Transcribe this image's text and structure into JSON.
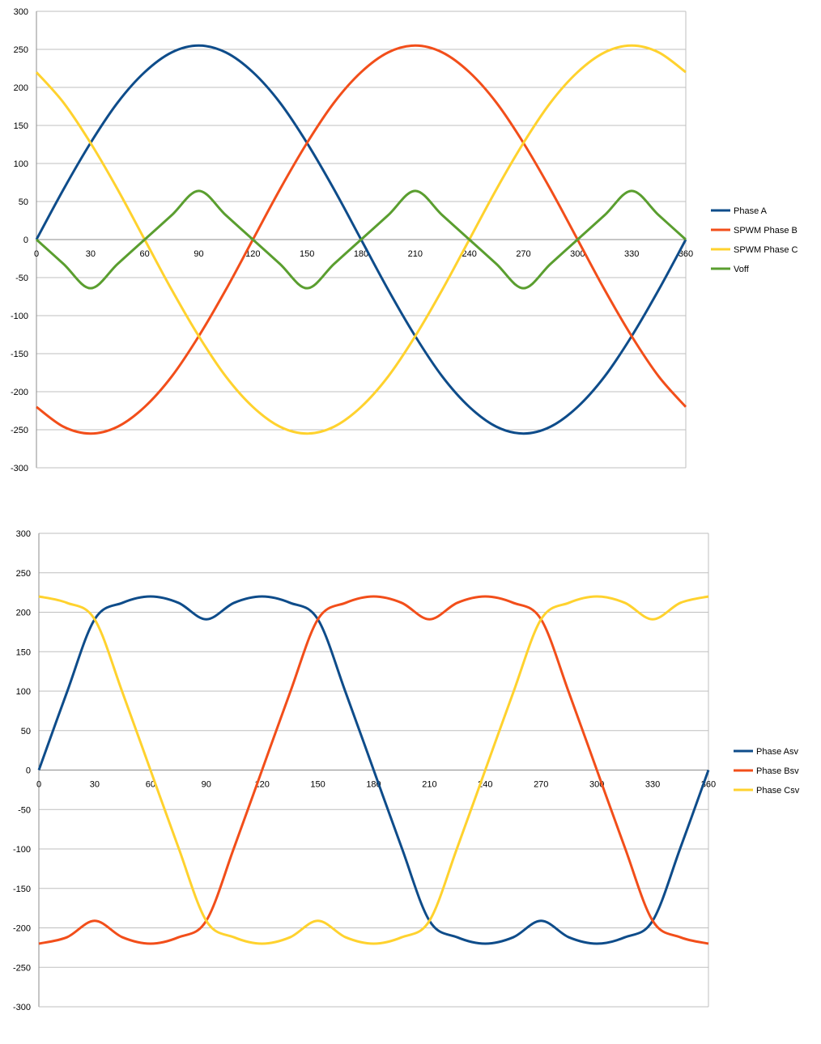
{
  "chart_data": [
    {
      "type": "line",
      "title": "",
      "xlabel": "",
      "ylabel": "",
      "xlim": [
        0,
        360
      ],
      "ylim": [
        -300,
        300
      ],
      "x_ticks": [
        0,
        30,
        60,
        90,
        120,
        150,
        180,
        210,
        240,
        270,
        300,
        330,
        360
      ],
      "y_ticks": [
        300,
        250,
        200,
        150,
        100,
        50,
        0,
        -50,
        -100,
        -150,
        -200,
        -250,
        -300
      ],
      "grid": "horizontal",
      "legend_position": "right",
      "x": [
        0,
        15,
        30,
        45,
        60,
        75,
        90,
        105,
        120,
        135,
        150,
        165,
        180,
        195,
        210,
        225,
        240,
        255,
        270,
        285,
        300,
        315,
        330,
        345,
        360
      ],
      "series": [
        {
          "name": "Phase A",
          "color": "#0E4C8A",
          "values": [
            0,
            66,
            127,
            180,
            220,
            246,
            255,
            246,
            220,
            180,
            127,
            66,
            0,
            -66,
            -127,
            -180,
            -220,
            -246,
            -255,
            -246,
            -220,
            -180,
            -127,
            -66,
            0
          ]
        },
        {
          "name": "SPWM Phase B",
          "color": "#F24E1A",
          "values": [
            -220,
            -246,
            -255,
            -246,
            -220,
            -180,
            -127,
            -66,
            0,
            66,
            127,
            180,
            220,
            246,
            255,
            246,
            220,
            180,
            127,
            66,
            0,
            -66,
            -127,
            -180,
            -220
          ]
        },
        {
          "name": "SPWM Phase C",
          "color": "#FFD22E",
          "values": [
            220,
            180,
            127,
            66,
            0,
            -66,
            -127,
            -180,
            -220,
            -246,
            -255,
            -246,
            -220,
            -180,
            -127,
            -66,
            0,
            66,
            127,
            180,
            220,
            246,
            255,
            246,
            220
          ]
        },
        {
          "name": "Voff",
          "color": "#5A9E2F",
          "values": [
            0,
            -32,
            -64,
            -32,
            0,
            32,
            64,
            32,
            0,
            -32,
            -64,
            -32,
            0,
            32,
            64,
            32,
            0,
            -32,
            -64,
            -32,
            0,
            32,
            64,
            32,
            0
          ]
        }
      ]
    },
    {
      "type": "line",
      "title": "",
      "xlabel": "",
      "ylabel": "",
      "xlim": [
        0,
        360
      ],
      "ylim": [
        -300,
        300
      ],
      "x_ticks": [
        0,
        30,
        60,
        90,
        120,
        150,
        180,
        210,
        240,
        270,
        300,
        330,
        360
      ],
      "y_ticks": [
        300,
        250,
        200,
        150,
        100,
        50,
        0,
        -50,
        -100,
        -150,
        -200,
        -250,
        -300
      ],
      "grid": "horizontal",
      "legend_position": "right",
      "x": [
        0,
        15,
        30,
        45,
        60,
        75,
        90,
        105,
        120,
        135,
        150,
        165,
        180,
        195,
        210,
        225,
        240,
        255,
        270,
        285,
        300,
        315,
        330,
        345,
        360
      ],
      "series": [
        {
          "name": "Phase Asv",
          "color": "#0E4C8A",
          "values": [
            0,
            98,
            191,
            212,
            220,
            212,
            191,
            212,
            220,
            212,
            191,
            98,
            0,
            -98,
            -191,
            -212,
            -220,
            -212,
            -191,
            -212,
            -220,
            -212,
            -191,
            -98,
            0
          ]
        },
        {
          "name": "Phase Bsv",
          "color": "#F24E1A",
          "values": [
            -220,
            -212,
            -191,
            -212,
            -220,
            -212,
            -191,
            -98,
            0,
            98,
            191,
            212,
            220,
            212,
            191,
            212,
            220,
            212,
            191,
            98,
            0,
            -98,
            -191,
            -212,
            -220
          ]
        },
        {
          "name": "Phase Csv",
          "color": "#FFD22E",
          "values": [
            220,
            212,
            191,
            98,
            0,
            -98,
            -191,
            -212,
            -220,
            -212,
            -191,
            -212,
            -220,
            -212,
            -191,
            -98,
            0,
            98,
            191,
            212,
            220,
            212,
            191,
            212,
            220
          ]
        }
      ]
    }
  ]
}
